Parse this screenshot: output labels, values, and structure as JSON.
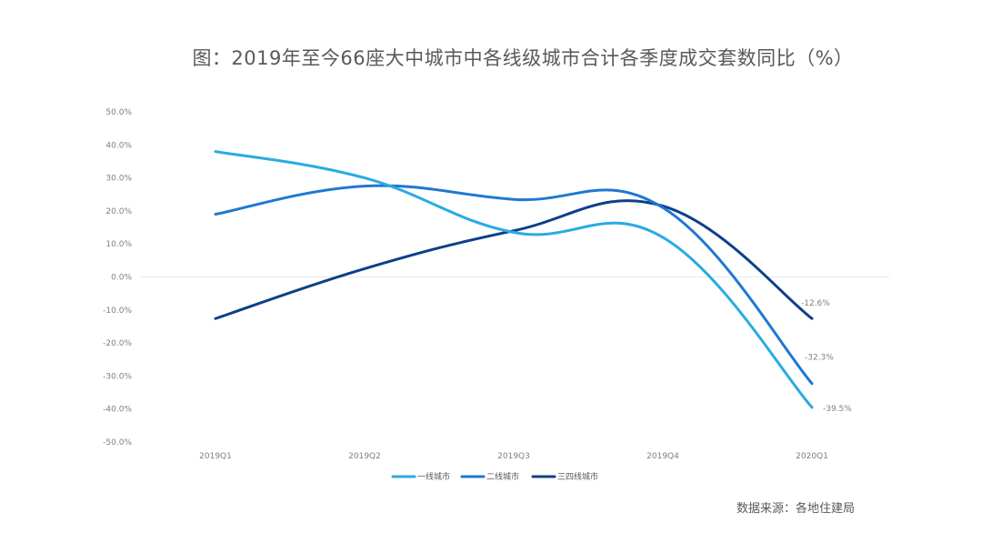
{
  "chart_data": {
    "type": "line",
    "title": "图：2019年至今66座大中城市中各线级城市合计各季度成交套数同比（%）",
    "categories": [
      "2019Q1",
      "2019Q2",
      "2019Q3",
      "2019Q4",
      "2020Q1"
    ],
    "series": [
      {
        "name": "一线城市",
        "values": [
          38.0,
          30.0,
          13.5,
          12.0,
          -39.5
        ],
        "color": "#29abe2"
      },
      {
        "name": "二线城市",
        "values": [
          19.0,
          27.5,
          23.5,
          21.0,
          -32.3
        ],
        "color": "#1f78d1"
      },
      {
        "name": "三四线城市",
        "values": [
          -12.6,
          2.5,
          14.0,
          21.5,
          -12.6
        ],
        "color": "#0d3f8a"
      }
    ],
    "ylim": [
      -50,
      50
    ],
    "ytick_step": 10,
    "ytick_labels": [
      "50.0%",
      "40.0%",
      "30.0%",
      "20.0%",
      "10.0%",
      "0.0%",
      "-10.0%",
      "-20.0%",
      "-30.0%",
      "-40.0%",
      "-50.0%"
    ],
    "data_labels": [
      {
        "series": "三四线城市",
        "category": "2020Q1",
        "text": "-12.6%"
      },
      {
        "series": "二线城市",
        "category": "2020Q1",
        "text": "-32.3%"
      },
      {
        "series": "一线城市",
        "category": "2020Q1",
        "text": "-39.5%"
      }
    ],
    "legend_position": "bottom",
    "xlabel": "",
    "ylabel": ""
  },
  "source": "数据来源：各地住建局"
}
